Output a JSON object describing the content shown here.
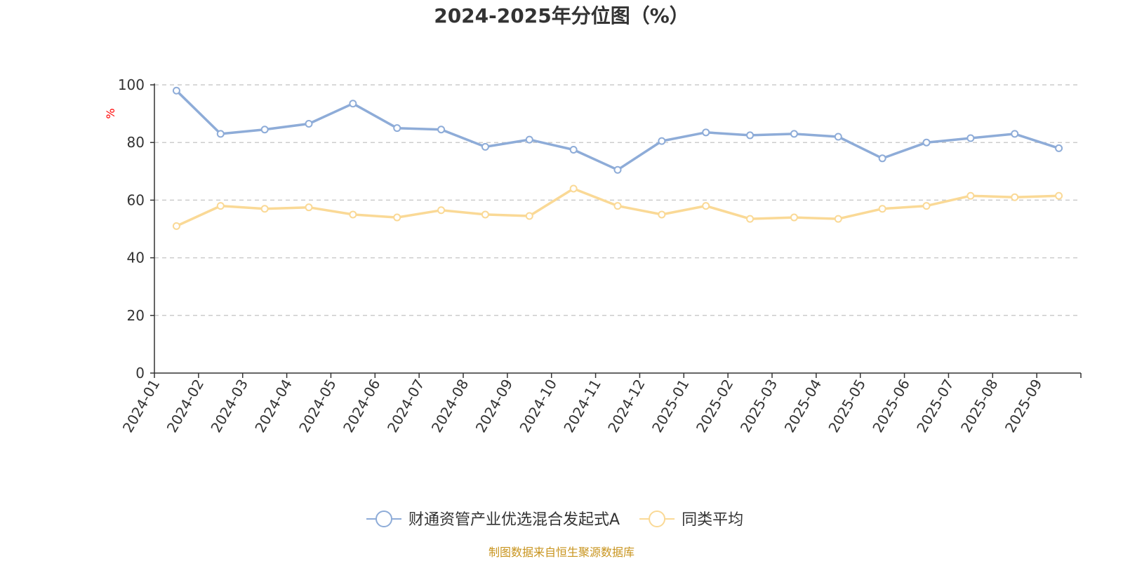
{
  "chart_data": {
    "type": "line",
    "title": "2024-2025年分位图（%）",
    "xlabel": "",
    "ylabel": "%",
    "ylim": [
      0,
      100
    ],
    "yticks": [
      0,
      20,
      40,
      60,
      80,
      100
    ],
    "grid": true,
    "legend_position": "bottom-center",
    "categories": [
      "2024-01",
      "2024-02",
      "2024-03",
      "2024-04",
      "2024-05",
      "2024-06",
      "2024-07",
      "2024-08",
      "2024-09",
      "2024-10",
      "2024-11",
      "2024-12",
      "2025-01",
      "2025-02",
      "2025-03",
      "2025-04",
      "2025-05",
      "2025-06",
      "2025-07",
      "2025-08",
      "2025-09"
    ],
    "series": [
      {
        "name": "财通资管产业优选混合发起式A",
        "color": "#8eacd8",
        "values": [
          98,
          83,
          84.5,
          86.5,
          93.5,
          85,
          84.5,
          78.5,
          81,
          77.5,
          70.5,
          80.5,
          83.5,
          82.5,
          83,
          82,
          74.5,
          80,
          81.5,
          83,
          78
        ]
      },
      {
        "name": "同类平均",
        "color": "#fad996",
        "values": [
          51,
          58,
          57,
          57.5,
          55,
          54,
          56.5,
          55,
          54.5,
          64,
          58,
          55,
          58,
          53.5,
          54,
          53.5,
          57,
          58,
          61.5,
          61,
          61.5
        ]
      }
    ],
    "source": "制图数据来自恒生聚源数据库",
    "colors": {
      "axis": "#333333",
      "grid": "#cccccc",
      "ylabel": "#ff0000",
      "source": "#c8941e"
    }
  }
}
